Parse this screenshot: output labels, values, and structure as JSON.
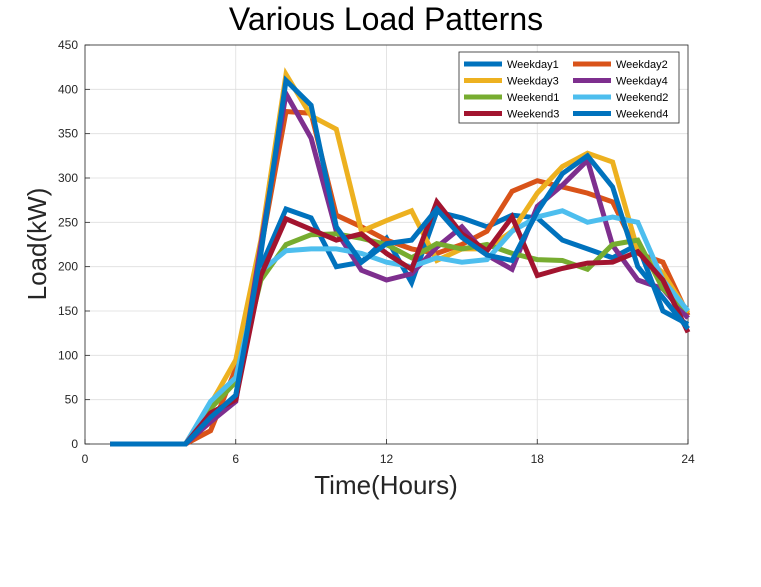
{
  "chart_data": {
    "type": "line",
    "title": "Various Load Patterns",
    "xlabel": "Time(Hours)",
    "ylabel": "Load(kW)",
    "xlim": [
      0,
      24
    ],
    "ylim": [
      0,
      450
    ],
    "xticks": [
      0,
      6,
      12,
      18,
      24
    ],
    "yticks": [
      0,
      50,
      100,
      150,
      200,
      250,
      300,
      350,
      400,
      450
    ],
    "grid": true,
    "legend_position": "top-right",
    "legend_columns": 2,
    "x": [
      1,
      2,
      3,
      4,
      5,
      6,
      7,
      8,
      9,
      10,
      11,
      12,
      13,
      14,
      15,
      16,
      17,
      18,
      19,
      20,
      21,
      22,
      23,
      24
    ],
    "series": [
      {
        "name": "Weekday1",
        "color": "#0072bd",
        "values": [
          0,
          0,
          0,
          0,
          30,
          55,
          200,
          265,
          255,
          200,
          205,
          232,
          182,
          262,
          255,
          245,
          258,
          255,
          230,
          220,
          210,
          225,
          150,
          135
        ]
      },
      {
        "name": "Weekday2",
        "color": "#d95319",
        "values": [
          0,
          0,
          0,
          0,
          15,
          85,
          220,
          375,
          373,
          258,
          245,
          230,
          220,
          215,
          225,
          240,
          285,
          297,
          290,
          283,
          273,
          215,
          205,
          145
        ]
      },
      {
        "name": "Weekday3",
        "color": "#edb120",
        "values": [
          0,
          0,
          0,
          0,
          45,
          95,
          230,
          417,
          370,
          355,
          240,
          252,
          263,
          207,
          220,
          220,
          240,
          283,
          313,
          328,
          318,
          218,
          193,
          148
        ]
      },
      {
        "name": "Weekday4",
        "color": "#7e2f8e",
        "values": [
          0,
          0,
          0,
          0,
          25,
          48,
          225,
          395,
          345,
          240,
          196,
          185,
          192,
          222,
          245,
          213,
          197,
          268,
          292,
          320,
          224,
          185,
          175,
          142
        ]
      },
      {
        "name": "Weekend1",
        "color": "#77ac30",
        "values": [
          0,
          0,
          0,
          0,
          40,
          70,
          185,
          225,
          236,
          237,
          232,
          225,
          210,
          226,
          220,
          225,
          215,
          208,
          207,
          197,
          225,
          230,
          175,
          150
        ]
      },
      {
        "name": "Weekend2",
        "color": "#4dbeee",
        "values": [
          0,
          0,
          0,
          0,
          48,
          75,
          195,
          218,
          220,
          220,
          215,
          205,
          200,
          210,
          205,
          208,
          240,
          256,
          263,
          250,
          256,
          250,
          185,
          150
        ]
      },
      {
        "name": "Weekend3",
        "color": "#a2142f",
        "values": [
          0,
          0,
          0,
          0,
          35,
          50,
          190,
          254,
          242,
          230,
          237,
          215,
          197,
          273,
          237,
          218,
          256,
          190,
          198,
          204,
          205,
          217,
          185,
          126
        ]
      },
      {
        "name": "Weekend4",
        "color": "#0072bd",
        "values": [
          0,
          0,
          0,
          0,
          30,
          55,
          215,
          410,
          382,
          245,
          205,
          226,
          230,
          265,
          233,
          213,
          207,
          262,
          305,
          325,
          290,
          200,
          165,
          130
        ]
      }
    ]
  }
}
